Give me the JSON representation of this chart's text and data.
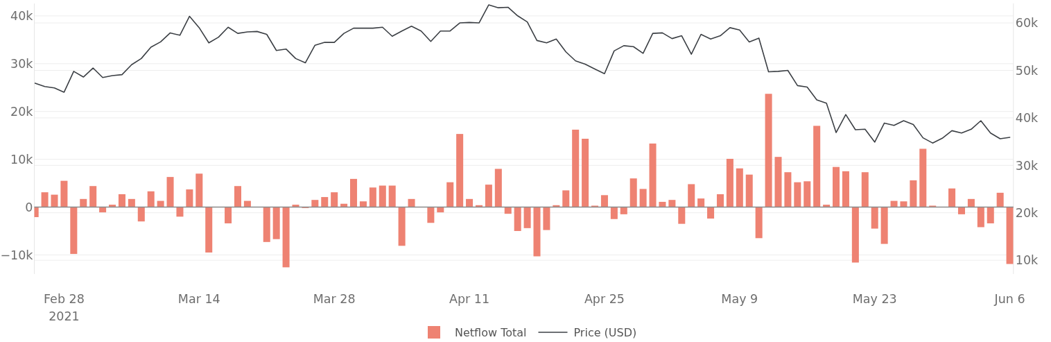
{
  "chart_data": {
    "type": "bar",
    "x": [
      "2021-02-25",
      "2021-02-26",
      "2021-02-27",
      "2021-02-28",
      "2021-03-01",
      "2021-03-02",
      "2021-03-03",
      "2021-03-04",
      "2021-03-05",
      "2021-03-06",
      "2021-03-07",
      "2021-03-08",
      "2021-03-09",
      "2021-03-10",
      "2021-03-11",
      "2021-03-12",
      "2021-03-13",
      "2021-03-14",
      "2021-03-15",
      "2021-03-16",
      "2021-03-17",
      "2021-03-18",
      "2021-03-19",
      "2021-03-20",
      "2021-03-21",
      "2021-03-22",
      "2021-03-23",
      "2021-03-24",
      "2021-03-25",
      "2021-03-26",
      "2021-03-27",
      "2021-03-28",
      "2021-03-29",
      "2021-03-30",
      "2021-03-31",
      "2021-04-01",
      "2021-04-02",
      "2021-04-03",
      "2021-04-04",
      "2021-04-05",
      "2021-04-06",
      "2021-04-07",
      "2021-04-08",
      "2021-04-09",
      "2021-04-10",
      "2021-04-11",
      "2021-04-12",
      "2021-04-13",
      "2021-04-14",
      "2021-04-15",
      "2021-04-16",
      "2021-04-17",
      "2021-04-18",
      "2021-04-19",
      "2021-04-20",
      "2021-04-21",
      "2021-04-22",
      "2021-04-23",
      "2021-04-24",
      "2021-04-25",
      "2021-04-26",
      "2021-04-27",
      "2021-04-28",
      "2021-04-29",
      "2021-04-30",
      "2021-05-01",
      "2021-05-02",
      "2021-05-03",
      "2021-05-04",
      "2021-05-05",
      "2021-05-06",
      "2021-05-07",
      "2021-05-08",
      "2021-05-09",
      "2021-05-10",
      "2021-05-11",
      "2021-05-12",
      "2021-05-13",
      "2021-05-14",
      "2021-05-15",
      "2021-05-16",
      "2021-05-17",
      "2021-05-18",
      "2021-05-19",
      "2021-05-20",
      "2021-05-21",
      "2021-05-22",
      "2021-05-23",
      "2021-05-24",
      "2021-05-25",
      "2021-05-26",
      "2021-05-27",
      "2021-05-28",
      "2021-05-29",
      "2021-05-30",
      "2021-05-31",
      "2021-06-01",
      "2021-06-02",
      "2021-06-03",
      "2021-06-04",
      "2021-06-05",
      "2021-06-06"
    ],
    "xlim": [
      "2021-02-24T22:00",
      "2021-06-06T09:00"
    ],
    "xticks": [
      {
        "value": "2021-02-28",
        "label": "Feb 28\n2021"
      },
      {
        "value": "2021-03-14",
        "label": "Mar 14"
      },
      {
        "value": "2021-03-28",
        "label": "Mar 28"
      },
      {
        "value": "2021-04-11",
        "label": "Apr 11"
      },
      {
        "value": "2021-04-25",
        "label": "Apr 25"
      },
      {
        "value": "2021-05-09",
        "label": "May 9"
      },
      {
        "value": "2021-05-23",
        "label": "May 23"
      },
      {
        "value": "2021-06-06",
        "label": "Jun 6"
      }
    ],
    "ylim": [
      -14000,
      42600
    ],
    "yticks": [
      {
        "value": -10000,
        "label": "−10k"
      },
      0,
      {
        "value": 10000,
        "label": "10k"
      },
      {
        "value": 20000,
        "label": "20k"
      },
      {
        "value": 30000,
        "label": "30k"
      },
      {
        "value": 40000,
        "label": "40k"
      }
    ],
    "y2lim": [
      7100,
      64100
    ],
    "y2ticks": [
      {
        "value": 10000,
        "label": "10k"
      },
      {
        "value": 20000,
        "label": "20k"
      },
      {
        "value": 30000,
        "label": "30k"
      },
      {
        "value": 40000,
        "label": "40k"
      },
      {
        "value": 50000,
        "label": "50k"
      },
      {
        "value": 60000,
        "label": "60k"
      }
    ],
    "grid": true,
    "legend": "bottom",
    "series": [
      {
        "name": "Netflow Total",
        "color": "#ee8272",
        "values": [
          -2100,
          3100,
          2600,
          5500,
          -9800,
          1700,
          4400,
          -1100,
          500,
          2700,
          1700,
          -3000,
          3300,
          1300,
          6300,
          -2000,
          3700,
          7000,
          -9500,
          0,
          -3400,
          4400,
          1300,
          0,
          -7300,
          -6700,
          -12600,
          500,
          -200,
          1500,
          2100,
          3100,
          700,
          5900,
          1200,
          4100,
          4500,
          4500,
          -8100,
          1700,
          0,
          -3300,
          -1100,
          5200,
          15300,
          1700,
          400,
          4700,
          8000,
          -1400,
          -5000,
          -4400,
          -10300,
          -4800,
          400,
          3500,
          16200,
          14300,
          300,
          2500,
          -2500,
          -1500,
          6000,
          3800,
          13300,
          1100,
          1500,
          -3500,
          4800,
          1800,
          -2400,
          2700,
          10100,
          8100,
          6800,
          -6500,
          23700,
          10500,
          7300,
          5200,
          5400,
          17000,
          500,
          8400,
          7500,
          -11600,
          7300,
          -4500,
          -7700,
          1300,
          1200,
          5600,
          12200,
          300,
          0,
          3900,
          -1500,
          1700,
          -4200,
          -3400,
          3000,
          -11900
        ]
      },
      {
        "name": "Price (USD)",
        "type": "line",
        "axis": "y2",
        "color": "#3b3f44",
        "values": [
          47300,
          46600,
          46300,
          45400,
          49800,
          48600,
          50500,
          48500,
          48900,
          49100,
          51200,
          52500,
          54900,
          56000,
          57900,
          57400,
          61400,
          59000,
          55800,
          57000,
          59100,
          57800,
          58100,
          58200,
          57600,
          54200,
          54500,
          52500,
          51600,
          55300,
          55900,
          55900,
          57800,
          58900,
          58900,
          58900,
          59100,
          57200,
          58300,
          59300,
          58300,
          56100,
          58300,
          58300,
          60000,
          60100,
          60000,
          63800,
          63200,
          63300,
          61500,
          60200,
          56300,
          55800,
          56600,
          53900,
          52000,
          51300,
          50300,
          49300,
          54100,
          55200,
          55000,
          53600,
          57800,
          57900,
          56700,
          57300,
          53400,
          57600,
          56600,
          57300,
          59000,
          58500,
          56000,
          56800,
          49700,
          49800,
          50000,
          46800,
          46500,
          43800,
          43100,
          36900,
          40700,
          37500,
          37600,
          34900,
          38900,
          38400,
          39400,
          38600,
          35800,
          34700,
          35700,
          37300,
          36800,
          37600,
          39400,
          36800,
          35600,
          35900
        ]
      }
    ]
  }
}
